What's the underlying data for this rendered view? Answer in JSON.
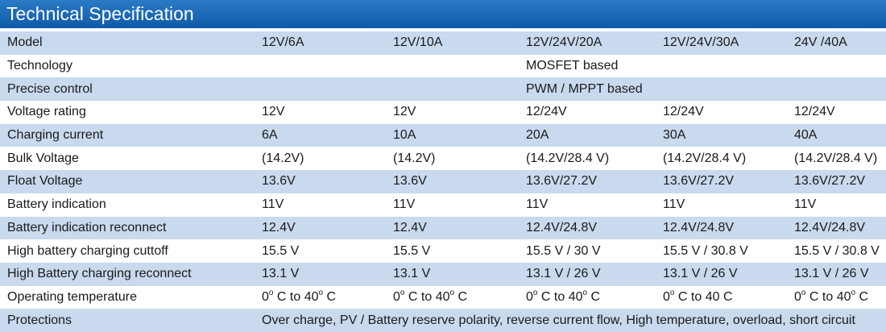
{
  "title": "Technical Specification",
  "model_row": {
    "label": "Model",
    "values": [
      "12V/6A",
      "12V/10A",
      "12V/24V/20A",
      "12V/24V/30A",
      "24V /40A"
    ]
  },
  "span_rows": [
    {
      "label": "Technology",
      "value": "MOSFET based"
    },
    {
      "label": "Precise control",
      "value": "PWM / MPPT based"
    }
  ],
  "rows": [
    {
      "label": "Voltage rating",
      "values": [
        "12V",
        "12V",
        "12/24V",
        "12/24V",
        "12/24V"
      ]
    },
    {
      "label": "Charging current",
      "values": [
        "6A",
        "10A",
        "20A",
        "30A",
        "40A"
      ]
    },
    {
      "label": "Bulk Voltage",
      "values": [
        "(14.2V)",
        "(14.2V)",
        "(14.2V/28.4 V)",
        "(14.2V/28.4 V)",
        "(14.2V/28.4 V)"
      ]
    },
    {
      "label": "Float Voltage",
      "values": [
        "13.6V",
        "13.6V",
        "13.6V/27.2V",
        "13.6V/27.2V",
        "13.6V/27.2V"
      ]
    },
    {
      "label": "Battery indication",
      "values": [
        "11V",
        "11V",
        "11V",
        "11V",
        "11V"
      ]
    },
    {
      "label": "Battery indication reconnect",
      "values": [
        "12.4V",
        "12.4V",
        "12.4V/24.8V",
        "12.4V/24.8V",
        "12.4V/24.8V"
      ]
    },
    {
      "label": "High battery charging cuttoff",
      "values": [
        "15.5 V",
        "15.5 V",
        "15.5 V / 30 V",
        "15.5 V / 30.8 V",
        "15.5 V / 30.8 V"
      ]
    },
    {
      "label": "High Battery charging reconnect",
      "values": [
        "13.1 V",
        "13.1 V",
        "13.1 V / 26 V",
        "13.1 V / 26 V",
        "13.1 V / 26 V"
      ]
    }
  ],
  "temperature_row": {
    "label": "Operating temperature",
    "values": [
      {
        "pre": "0",
        "mid": " C to 40",
        "post": " C",
        "sup1": "o",
        "sup2": "o"
      },
      {
        "pre": "0",
        "mid": " C to 40",
        "post": " C",
        "sup1": "o",
        "sup2": "o"
      },
      {
        "pre": "0",
        "mid": " C to 40",
        "post": " C",
        "sup1": "o",
        "sup2": "o"
      },
      {
        "pre": "0",
        "mid": " C to 40 C",
        "post": "",
        "sup1": "o",
        "sup2": ""
      },
      {
        "pre": "0",
        "mid": " C to 40",
        "post": " C",
        "sup1": "o",
        "sup2": "o"
      }
    ]
  },
  "protections_row": {
    "label": "Protections",
    "value": "Over charge, PV / Battery reserve polarity, reverse current flow, High temperature, overload, short circuit"
  },
  "colors": {
    "header_blue": "#1565b3",
    "row_shade": "#c9d9ee",
    "row_plain": "#ffffff"
  }
}
